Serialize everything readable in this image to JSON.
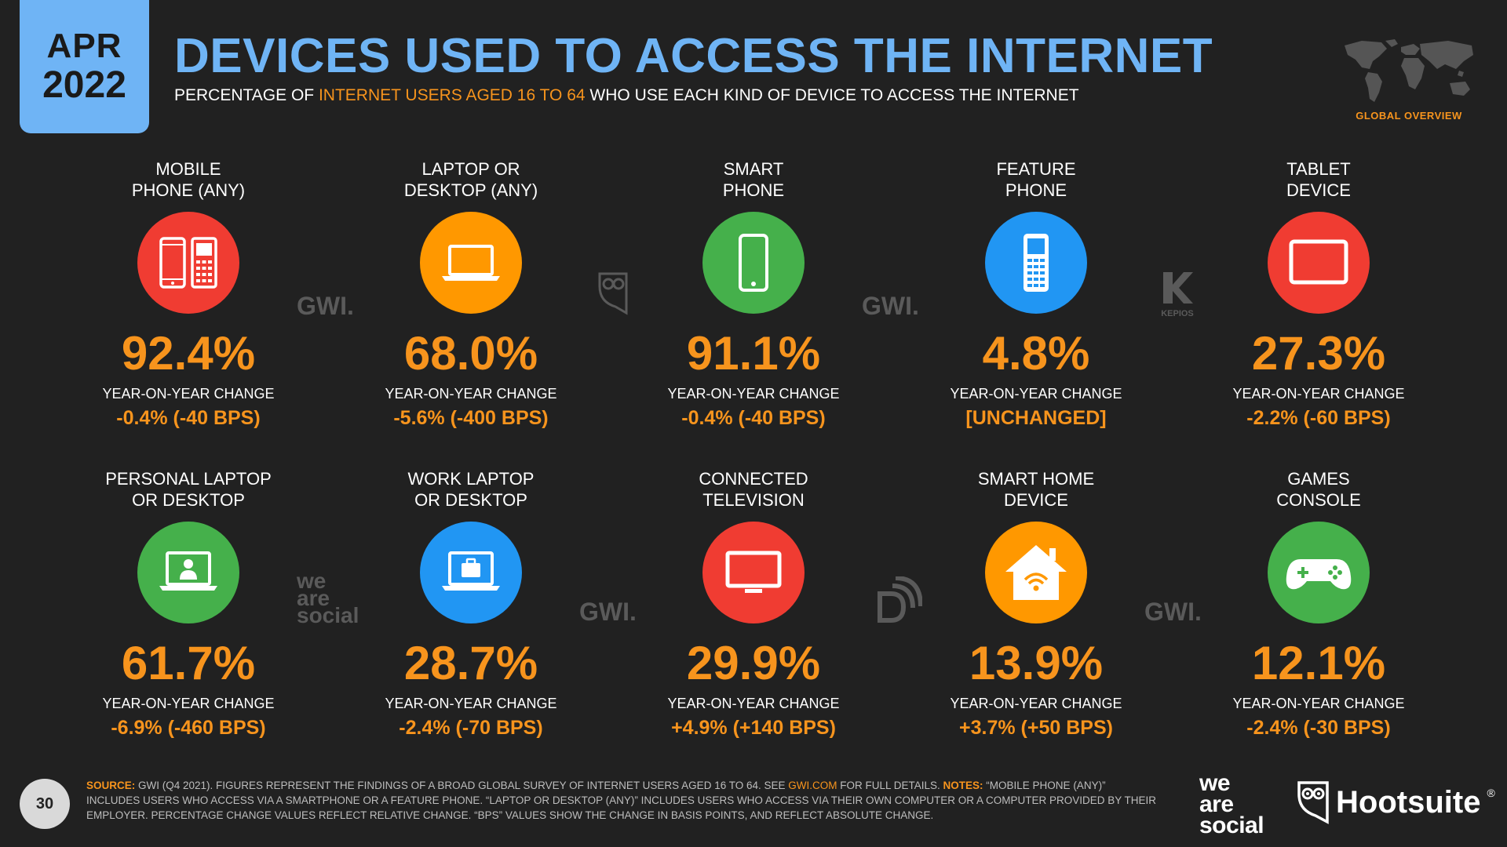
{
  "header": {
    "date_month": "APR",
    "date_year": "2022",
    "title": "DEVICES USED TO ACCESS THE INTERNET",
    "subtitle_pre": "PERCENTAGE OF ",
    "subtitle_highlight": "INTERNET USERS AGED 16 TO 64",
    "subtitle_post": " WHO USE EACH KIND OF DEVICE TO ACCESS THE INTERNET",
    "section": "GLOBAL OVERVIEW"
  },
  "colors": {
    "accent": "#f7941d",
    "title_blue": "#6fb4f5",
    "red": "#f03c32",
    "orange": "#ff9800",
    "green": "#45b04b",
    "blue": "#2196f3"
  },
  "devices": [
    {
      "label_1": "MOBILE",
      "label_2": "PHONE (ANY)",
      "value": "92.4%",
      "yoy_label": "YEAR-ON-YEAR CHANGE",
      "yoy_value": "-0.4% (-40 BPS)",
      "icon": "mobile-phones-icon",
      "color": "#f03c32"
    },
    {
      "label_1": "LAPTOP OR",
      "label_2": "DESKTOP (ANY)",
      "value": "68.0%",
      "yoy_label": "YEAR-ON-YEAR CHANGE",
      "yoy_value": "-5.6% (-400 BPS)",
      "icon": "laptop-icon",
      "color": "#ff9800"
    },
    {
      "label_1": "SMART",
      "label_2": "PHONE",
      "value": "91.1%",
      "yoy_label": "YEAR-ON-YEAR CHANGE",
      "yoy_value": "-0.4% (-40 BPS)",
      "icon": "smartphone-icon",
      "color": "#45b04b"
    },
    {
      "label_1": "FEATURE",
      "label_2": "PHONE",
      "value": "4.8%",
      "yoy_label": "YEAR-ON-YEAR CHANGE",
      "yoy_value": "[UNCHANGED]",
      "icon": "feature-phone-icon",
      "color": "#2196f3"
    },
    {
      "label_1": "TABLET",
      "label_2": "DEVICE",
      "value": "27.3%",
      "yoy_label": "YEAR-ON-YEAR CHANGE",
      "yoy_value": "-2.2% (-60 BPS)",
      "icon": "tablet-icon",
      "color": "#f03c32"
    },
    {
      "label_1": "PERSONAL LAPTOP",
      "label_2": "OR DESKTOP",
      "value": "61.7%",
      "yoy_label": "YEAR-ON-YEAR CHANGE",
      "yoy_value": "-6.9% (-460 BPS)",
      "icon": "personal-laptop-icon",
      "color": "#45b04b"
    },
    {
      "label_1": "WORK LAPTOP",
      "label_2": "OR DESKTOP",
      "value": "28.7%",
      "yoy_label": "YEAR-ON-YEAR CHANGE",
      "yoy_value": "-2.4% (-70 BPS)",
      "icon": "work-laptop-icon",
      "color": "#2196f3"
    },
    {
      "label_1": "CONNECTED",
      "label_2": "TELEVISION",
      "value": "29.9%",
      "yoy_label": "YEAR-ON-YEAR CHANGE",
      "yoy_value": "+4.9% (+140 BPS)",
      "icon": "television-icon",
      "color": "#f03c32"
    },
    {
      "label_1": "SMART HOME",
      "label_2": "DEVICE",
      "value": "13.9%",
      "yoy_label": "YEAR-ON-YEAR CHANGE",
      "yoy_value": "+3.7% (+50 BPS)",
      "icon": "smart-home-icon",
      "color": "#ff9800"
    },
    {
      "label_1": "GAMES",
      "label_2": "CONSOLE",
      "value": "12.1%",
      "yoy_label": "YEAR-ON-YEAR CHANGE",
      "yoy_value": "-2.4% (-30 BPS)",
      "icon": "game-controller-icon",
      "color": "#45b04b"
    }
  ],
  "watermarks": {
    "gwi": "GWI.",
    "kepios": "KEPIOS",
    "was_1": "we",
    "was_2": "are",
    "was_3": "social"
  },
  "footer": {
    "source_key": "SOURCE:",
    "source_text": " GWI (Q4 2021). FIGURES REPRESENT THE FINDINGS OF A BROAD GLOBAL SURVEY OF INTERNET USERS AGED 16 TO 64. SEE ",
    "source_link": "GWI.COM",
    "source_after": " FOR FULL DETAILS. ",
    "notes_key": "NOTES:",
    "notes_text": " “MOBILE PHONE (ANY)” INCLUDES USERS WHO ACCESS VIA A SMARTPHONE OR A FEATURE PHONE. “LAPTOP OR DESKTOP (ANY)” INCLUDES USERS WHO ACCESS VIA THEIR OWN COMPUTER OR A COMPUTER PROVIDED BY THEIR EMPLOYER. PERCENTAGE CHANGE VALUES REFLECT RELATIVE CHANGE. “BPS” VALUES SHOW THE CHANGE IN BASIS POINTS, AND REFLECT ABSOLUTE CHANGE.",
    "page_number": "30"
  },
  "brands": {
    "was_1": "we",
    "was_2": "are",
    "was_3": "social",
    "hootsuite": "Hootsuite",
    "registered": "®"
  }
}
